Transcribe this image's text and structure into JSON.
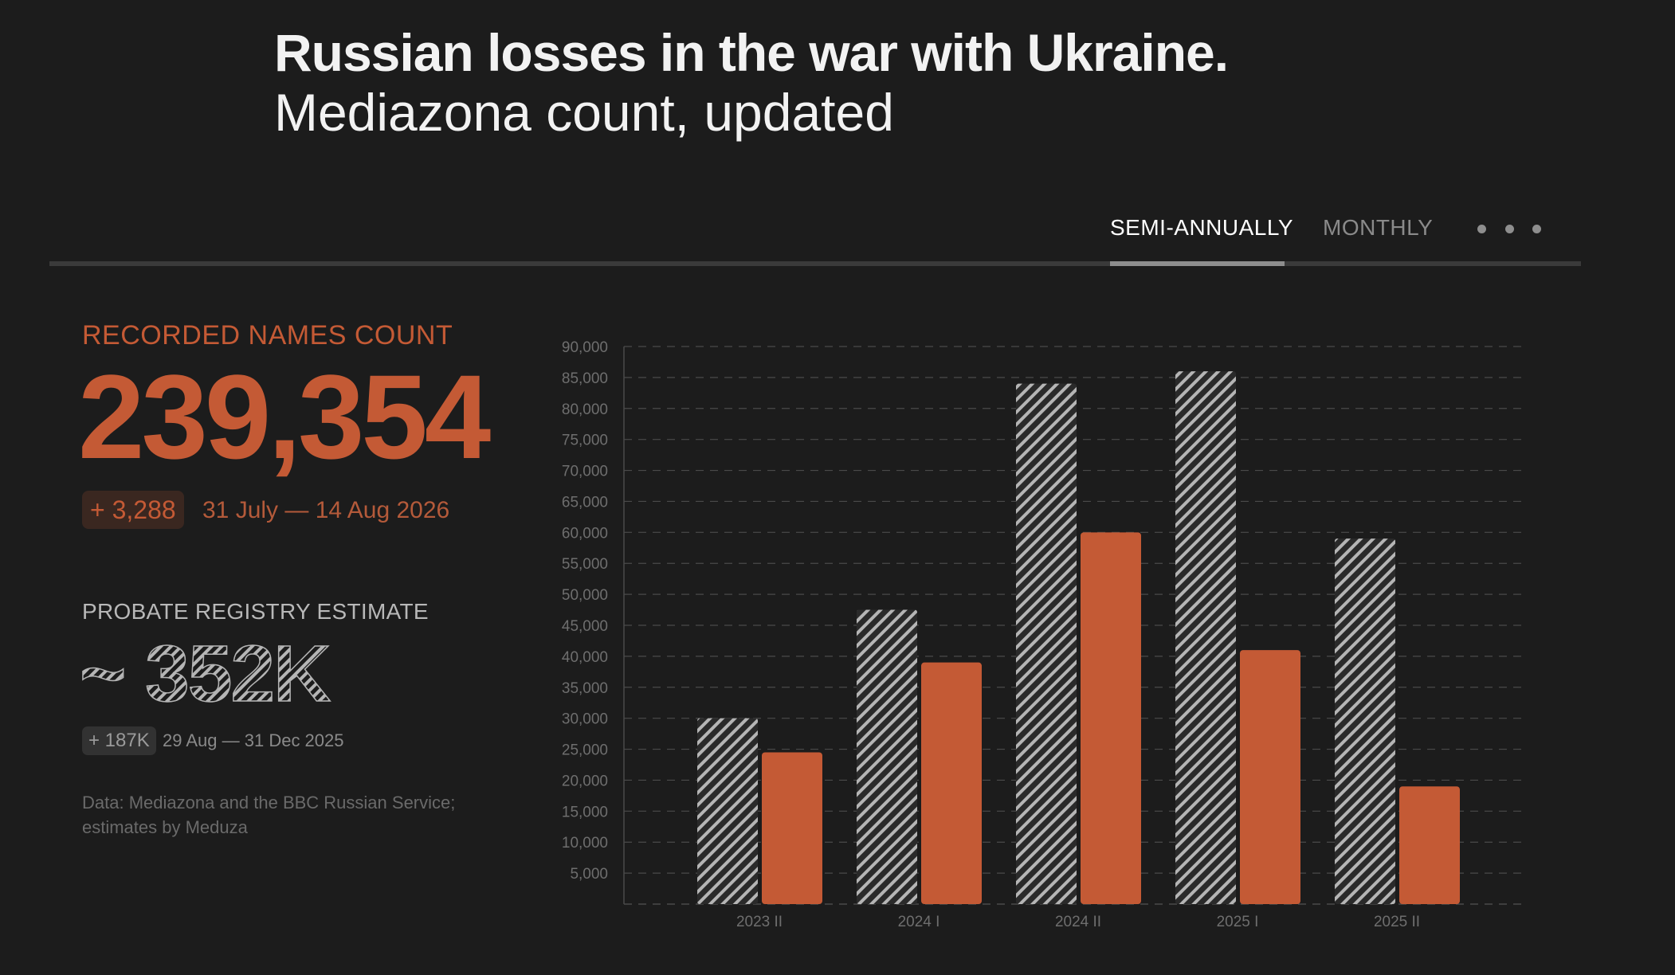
{
  "header": {
    "title": "Russian losses in the war with Ukraine.",
    "subtitle": "Mediazona count, updated"
  },
  "tabs": {
    "semi_annually": "SEMI-ANNUALLY",
    "monthly": "MONTHLY",
    "active": "semi_annually"
  },
  "stats": {
    "recorded_label": "RECORDED NAMES COUNT",
    "recorded_value": "239,354",
    "recorded_delta": "+ 3,288",
    "recorded_range": "31 July — 14 Aug 2026",
    "probate_label": "PROBATE REGISTRY ESTIMATE",
    "probate_value": "~ 352K",
    "probate_delta": "+ 187K",
    "probate_range": "29 Aug — 31 Dec 2025",
    "source": "Data: Mediazona and the BBC Russian Service; estimates by Meduza"
  },
  "colors": {
    "accent": "#c45a35",
    "hatch": "#b5b5b5",
    "background": "#1c1c1c",
    "grid": "#4a4a4a",
    "axis_text": "#6e6e6e"
  },
  "icons": {
    "more": "more-horizontal-icon"
  },
  "chart_data": {
    "type": "bar",
    "categories": [
      "2023 II",
      "2024 I",
      "2024 II",
      "2025 I",
      "2025 II"
    ],
    "series": [
      {
        "values": [
          30000,
          47500,
          84000,
          86000,
          59000
        ],
        "style": "hatched"
      },
      {
        "values": [
          24500,
          39000,
          60000,
          41000,
          19000
        ],
        "style": "solid"
      }
    ],
    "ylim": [
      0,
      90000
    ],
    "yticks": [
      5000,
      10000,
      15000,
      20000,
      25000,
      30000,
      35000,
      40000,
      45000,
      50000,
      55000,
      60000,
      65000,
      70000,
      75000,
      80000,
      85000,
      90000
    ],
    "ytick_labels": [
      "5,000",
      "10,000",
      "15,000",
      "20,000",
      "25,000",
      "30,000",
      "35,000",
      "40,000",
      "45,000",
      "50,000",
      "55,000",
      "60,000",
      "65,000",
      "70,000",
      "75,000",
      "80,000",
      "85,000",
      "90,000"
    ],
    "grid": true,
    "legend": "none"
  }
}
